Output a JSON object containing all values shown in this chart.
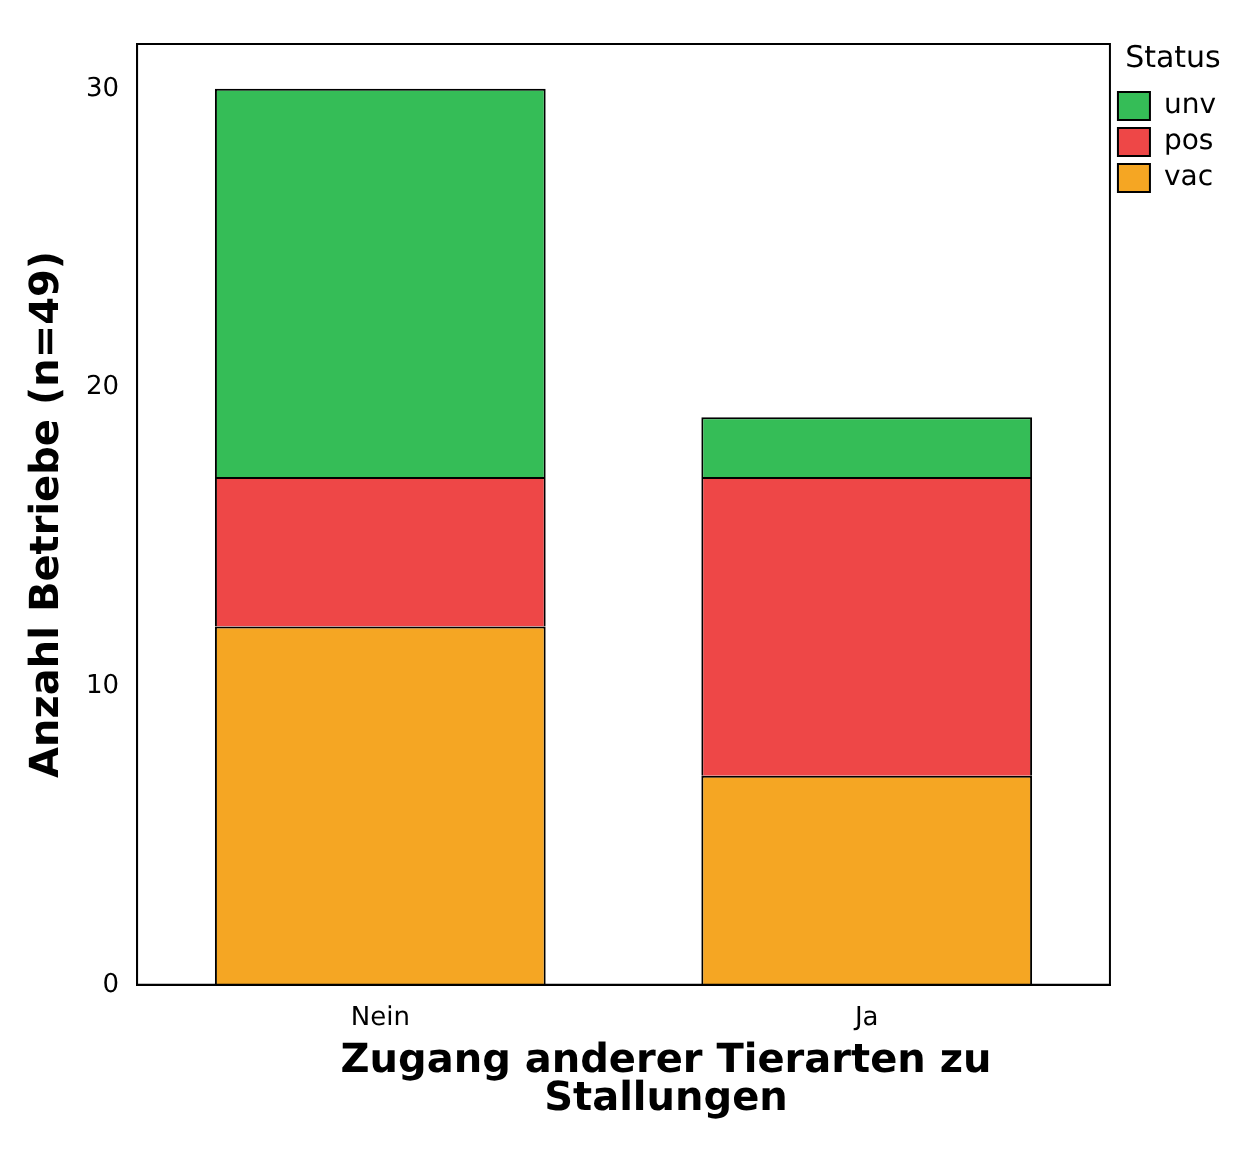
{
  "chart_data": {
    "type": "bar",
    "stacked": true,
    "xlabel": "Zugang anderer Tierarten zu Stallungen",
    "ylabel": "Anzahl Betriebe (n=49)",
    "legend_title": "Status",
    "categories": [
      "Nein",
      "Ja"
    ],
    "series": [
      {
        "name": "vac",
        "color": "#f5a623",
        "values": [
          12,
          7
        ]
      },
      {
        "name": "pos",
        "color": "#ee4747",
        "values": [
          5,
          10
        ]
      },
      {
        "name": "unv",
        "color": "#35bd57",
        "values": [
          13,
          2
        ]
      }
    ],
    "ylim": [
      0,
      31.5
    ],
    "yticks": [
      0,
      10,
      20,
      30
    ],
    "grid": false,
    "legend": "top right"
  }
}
